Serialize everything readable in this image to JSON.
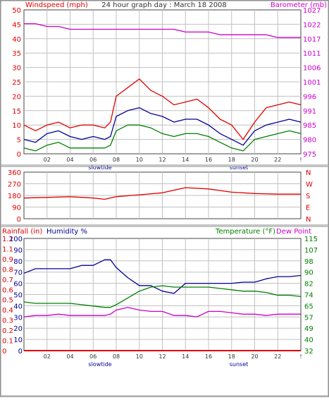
{
  "colors": {
    "red": "#e00000",
    "blue": "#000099",
    "green": "#008000",
    "magenta": "#cc00cc",
    "grid": "#c0c0c0",
    "text": "#333333"
  },
  "chart_data": [
    {
      "type": "line",
      "title": "24 hour graph day : March 18 2008",
      "left_axis_label": "Windspeed (mph)",
      "right_axis_label": "Barometer (mb)",
      "ylim_left": [
        0,
        50
      ],
      "ylim_right": [
        975,
        1027
      ],
      "left_ticks": [
        "0",
        "5",
        "10",
        "15",
        "20",
        "25",
        "30",
        "35",
        "40",
        "45",
        "50"
      ],
      "right_ticks": [
        "975",
        "980",
        "985",
        "991",
        "996",
        "1001",
        "1006",
        "1011",
        "1017",
        "1022",
        "1027"
      ],
      "x_ticks": [
        "02",
        "04",
        "06",
        "08",
        "10",
        "12",
        "14",
        "16",
        "18",
        "20",
        "22",
        "!"
      ],
      "x_markers": [
        "slowtide",
        "sunset"
      ],
      "x_hours": [
        0,
        1,
        2,
        3,
        4,
        5,
        6,
        7,
        7.5,
        8,
        9,
        10,
        11,
        12,
        13,
        14,
        15,
        16,
        17,
        18,
        19,
        20,
        21,
        22,
        23,
        24
      ],
      "series": [
        {
          "key": "gust",
          "color": "red",
          "values": [
            10,
            8,
            10,
            11,
            9,
            10,
            10,
            9,
            11,
            20,
            23,
            26,
            22,
            20,
            17,
            18,
            19,
            16,
            12,
            10,
            5,
            11,
            16,
            17,
            18,
            17
          ]
        },
        {
          "key": "avg",
          "color": "blue",
          "values": [
            5,
            4,
            7,
            8,
            6,
            5,
            6,
            5,
            6,
            13,
            15,
            16,
            14,
            13,
            11,
            12,
            12,
            10,
            7,
            5,
            3,
            8,
            10,
            11,
            12,
            11
          ]
        },
        {
          "key": "low",
          "color": "green",
          "values": [
            2,
            1,
            3,
            4,
            2,
            2,
            2,
            2,
            3,
            8,
            10,
            10,
            9,
            7,
            6,
            7,
            7,
            6,
            4,
            2,
            1,
            5,
            6,
            7,
            8,
            7
          ]
        },
        {
          "key": "barometer",
          "color": "magenta",
          "axis": "right",
          "values": [
            1022,
            1022,
            1021,
            1021,
            1020,
            1020,
            1020,
            1020,
            1020,
            1020,
            1020,
            1020,
            1020,
            1020,
            1020,
            1019,
            1019,
            1019,
            1018,
            1018,
            1018,
            1018,
            1018,
            1017,
            1017,
            1017
          ]
        }
      ]
    },
    {
      "type": "line",
      "left_ticks": [
        "0",
        "90",
        "180",
        "270",
        "360"
      ],
      "right_ticks": [
        "N",
        "E",
        "S",
        "W",
        "N"
      ],
      "ylim": [
        0,
        360
      ],
      "x_hours": [
        0,
        2,
        4,
        6,
        7,
        8,
        10,
        12,
        14,
        16,
        18,
        20,
        22,
        24
      ],
      "series": [
        {
          "key": "wind_direction",
          "color": "red",
          "values": [
            160,
            165,
            170,
            160,
            150,
            170,
            185,
            200,
            240,
            230,
            205,
            195,
            190,
            190
          ]
        }
      ]
    },
    {
      "type": "line",
      "rainfall_label": "Rainfall (in)",
      "humidity_label": "Humidity %",
      "temperature_label": "Temperature (°F)",
      "dewpoint_label": "Dew Point",
      "rain_ticks": [
        "0",
        "0.1",
        "0.2",
        "0.3",
        "0.4",
        "0.5",
        "0.6",
        "0.7",
        "0.8",
        "0.9",
        "1.1",
        "1.2"
      ],
      "humidity_ticks": [
        "0",
        "10",
        "20",
        "30",
        "40",
        "50",
        "60",
        "70",
        "80",
        "90",
        "100"
      ],
      "temp_ticks": [
        "32",
        "40",
        "49",
        "57",
        "65",
        "74",
        "82",
        "90",
        "98",
        "107",
        "115"
      ],
      "ylim_humidity": [
        0,
        100
      ],
      "ylim_temp": [
        32,
        115
      ],
      "x_hours": [
        0,
        1,
        2,
        3,
        4,
        5,
        6,
        7,
        7.5,
        8,
        9,
        10,
        11,
        12,
        13,
        14,
        15,
        16,
        17,
        18,
        19,
        20,
        21,
        22,
        23,
        24
      ],
      "series": [
        {
          "key": "humidity",
          "color": "blue",
          "axis": "humidity",
          "values": [
            69,
            73,
            73,
            73,
            73,
            76,
            76,
            81,
            81,
            74,
            65,
            58,
            58,
            53,
            51,
            60,
            60,
            60,
            60,
            60,
            61,
            61,
            64,
            66,
            66,
            67
          ]
        },
        {
          "key": "temperature",
          "color": "green",
          "axis": "temp",
          "values": [
            68,
            67,
            67,
            67,
            67,
            66,
            65,
            64,
            64,
            66,
            71,
            76,
            79,
            80,
            79,
            79,
            79,
            79,
            78,
            77,
            76,
            76,
            75,
            73,
            73,
            72
          ]
        },
        {
          "key": "dewpoint",
          "color": "magenta",
          "axis": "temp",
          "values": [
            57,
            58,
            58,
            59,
            58,
            58,
            58,
            58,
            59,
            62,
            64,
            62,
            61,
            61,
            58,
            58,
            57,
            61,
            61,
            60,
            59,
            59,
            58,
            59,
            59,
            59
          ]
        },
        {
          "key": "rainfall",
          "color": "red",
          "axis": "rain",
          "values": [
            0,
            0,
            0,
            0,
            0,
            0,
            0,
            0,
            0,
            0,
            0,
            0,
            0,
            0,
            0,
            0,
            0,
            0,
            0,
            0,
            0,
            0,
            0,
            0,
            0,
            0
          ]
        }
      ]
    }
  ]
}
